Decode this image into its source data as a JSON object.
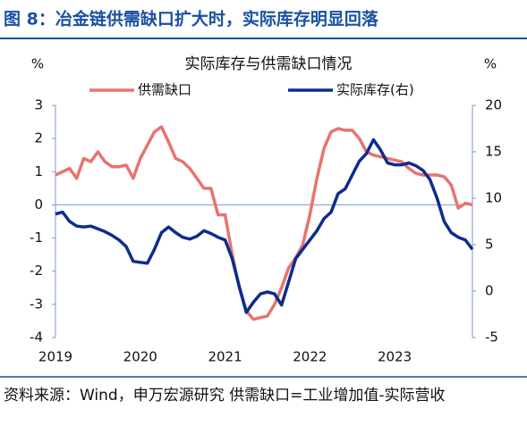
{
  "chart_data": {
    "type": "line",
    "header": "图 8：冶金链供需缺口扩大时，实际库存明显回落",
    "title": "实际库存与供需缺口情况",
    "y_label": "%",
    "y2_label": "%",
    "source": "资料来源：Wind，申万宏源研究  供需缺口=工业增加值-实际营收",
    "categories": [
      "2019",
      null,
      null,
      null,
      null,
      null,
      null,
      null,
      null,
      null,
      null,
      null,
      "2020",
      null,
      null,
      null,
      null,
      null,
      null,
      null,
      null,
      null,
      null,
      null,
      "2021",
      null,
      null,
      null,
      null,
      null,
      null,
      null,
      null,
      null,
      null,
      null,
      "2022",
      null,
      null,
      null,
      null,
      null,
      null,
      null,
      null,
      null,
      null,
      null,
      "2023",
      null,
      null,
      null,
      null,
      null,
      null,
      null,
      null,
      null,
      null,
      null
    ],
    "series": [
      {
        "name": "供需缺口",
        "color": "#e8736f",
        "values": [
          0.9,
          1.0,
          1.1,
          0.8,
          1.4,
          1.3,
          1.6,
          1.3,
          1.15,
          1.15,
          1.2,
          0.8,
          1.4,
          1.8,
          2.2,
          2.35,
          1.9,
          1.4,
          1.3,
          1.1,
          0.8,
          0.5,
          0.5,
          -0.3,
          -0.3,
          -1.5,
          -2.5,
          -3.2,
          -3.45,
          -3.4,
          -3.35,
          -3.0,
          -2.5,
          -1.9,
          -1.6,
          -1.2,
          -0.3,
          0.8,
          1.7,
          2.2,
          2.3,
          2.25,
          2.25,
          2.0,
          1.6,
          1.5,
          1.45,
          1.4,
          1.35,
          1.3,
          1.1,
          0.95,
          0.9,
          0.9,
          0.9,
          0.85,
          0.6,
          -0.1,
          0.05,
          0.0
        ]
      },
      {
        "name": "实际库存(右)",
        "color": "#0d2c8e",
        "axis": "y2",
        "values": [
          8.3,
          8.5,
          7.5,
          7.0,
          6.9,
          7.0,
          6.7,
          6.4,
          6.0,
          5.5,
          4.8,
          3.2,
          3.1,
          3.0,
          4.5,
          6.3,
          6.9,
          6.3,
          5.8,
          5.6,
          5.9,
          6.5,
          6.2,
          5.8,
          5.5,
          3.5,
          0.5,
          -2.3,
          -1.2,
          -0.3,
          -0.1,
          -0.3,
          -1.5,
          1.0,
          3.5,
          4.5,
          5.5,
          6.5,
          7.8,
          8.5,
          10.5,
          11.0,
          12.5,
          14.0,
          14.8,
          16.3,
          15.2,
          13.8,
          13.6,
          13.6,
          13.8,
          13.5,
          13.0,
          12.0,
          10.0,
          7.5,
          6.3,
          5.8,
          5.5,
          4.5
        ]
      }
    ],
    "ylim": [
      -4,
      3
    ],
    "yticks": [
      -4,
      -3,
      -2,
      -1,
      0,
      1,
      2,
      3
    ],
    "y2lim": [
      -5,
      20
    ],
    "y2ticks": [
      -5,
      0,
      5,
      10,
      15,
      20
    ]
  }
}
